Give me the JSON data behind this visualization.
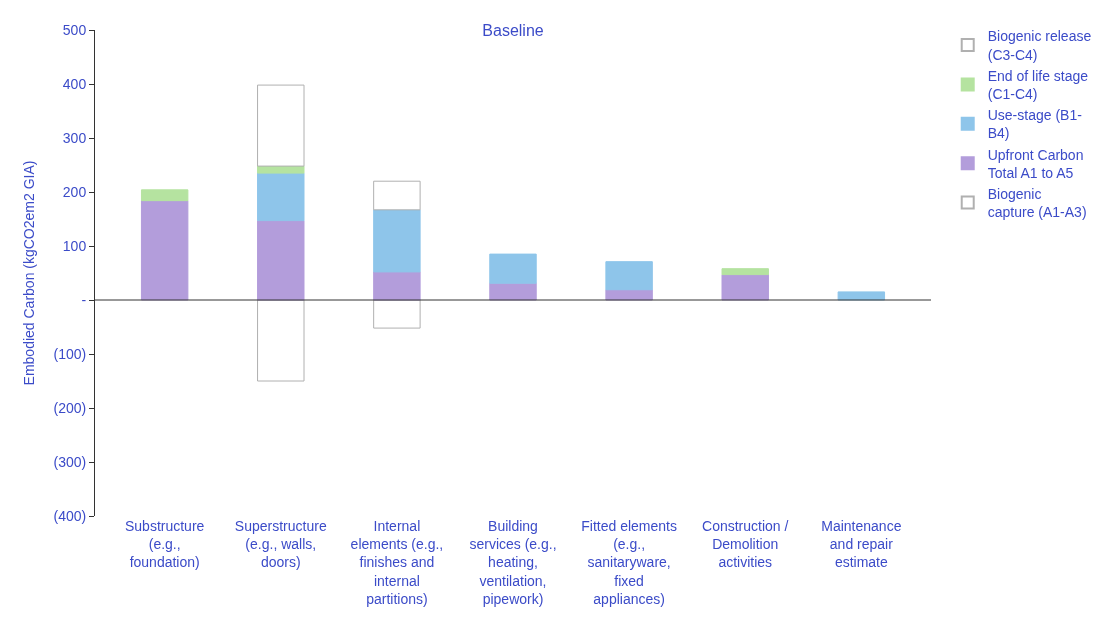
{
  "chart_data": {
    "type": "bar",
    "title": "Baseline",
    "ylabel": "Embodied Carbon (kgCO2em2 GIA)",
    "stacked": true,
    "legend": "right",
    "categories": [
      "Substructure\n(e.g.,\nfoundation)",
      "Superstructure\n(e.g., walls,\ndoors)",
      "Internal\nelements (e.g.,\nfinishes and\ninternal\npartitions)",
      "Building\nservices (e.g.,\nheating,\nventilation,\npipework)",
      "Fitted elements\n(e.g.,\nsanitaryware,\nfixed\nappliances)",
      "Construction /\nDemolition\nactivities",
      "Maintenance\nand repair\nestimate"
    ],
    "ylim": [
      -400,
      500
    ],
    "ref_lines": [
      {
        "axis": "y",
        "value": 0,
        "color": "#333333"
      }
    ],
    "yticks": [
      {
        "value": -400,
        "label": "(400)"
      },
      {
        "value": -300,
        "label": "(300)"
      },
      {
        "value": -200,
        "label": "(200)"
      },
      {
        "value": -100,
        "label": "(100)"
      },
      {
        "value": 0,
        "label": "-"
      },
      100,
      200,
      300,
      400,
      500
    ],
    "series": [
      {
        "name": "Biogenic\ncapture (A1-A3)",
        "color": "#ffffff",
        "values": [
          null,
          -150,
          -52,
          null,
          null,
          null,
          null
        ]
      },
      {
        "name": "Upfront Carbon\nTotal A1 to A5",
        "color": "#b39ddb",
        "values": [
          184,
          147,
          52,
          31,
          19,
          47,
          null
        ]
      },
      {
        "name": "Use-stage (B1-\nB4)",
        "color": "#8ec5ea",
        "values": [
          null,
          88,
          115,
          54,
          52,
          null,
          15
        ]
      },
      {
        "name": "End of life stage\n(C1-C4)",
        "color": "#b5e3a0",
        "values": [
          20,
          13,
          null,
          null,
          null,
          11,
          null
        ]
      },
      {
        "name": "Biogenic release\n(C3-C4)",
        "color": "#ffffff",
        "values": [
          null,
          150,
          53,
          null,
          null,
          null,
          null
        ]
      }
    ]
  }
}
